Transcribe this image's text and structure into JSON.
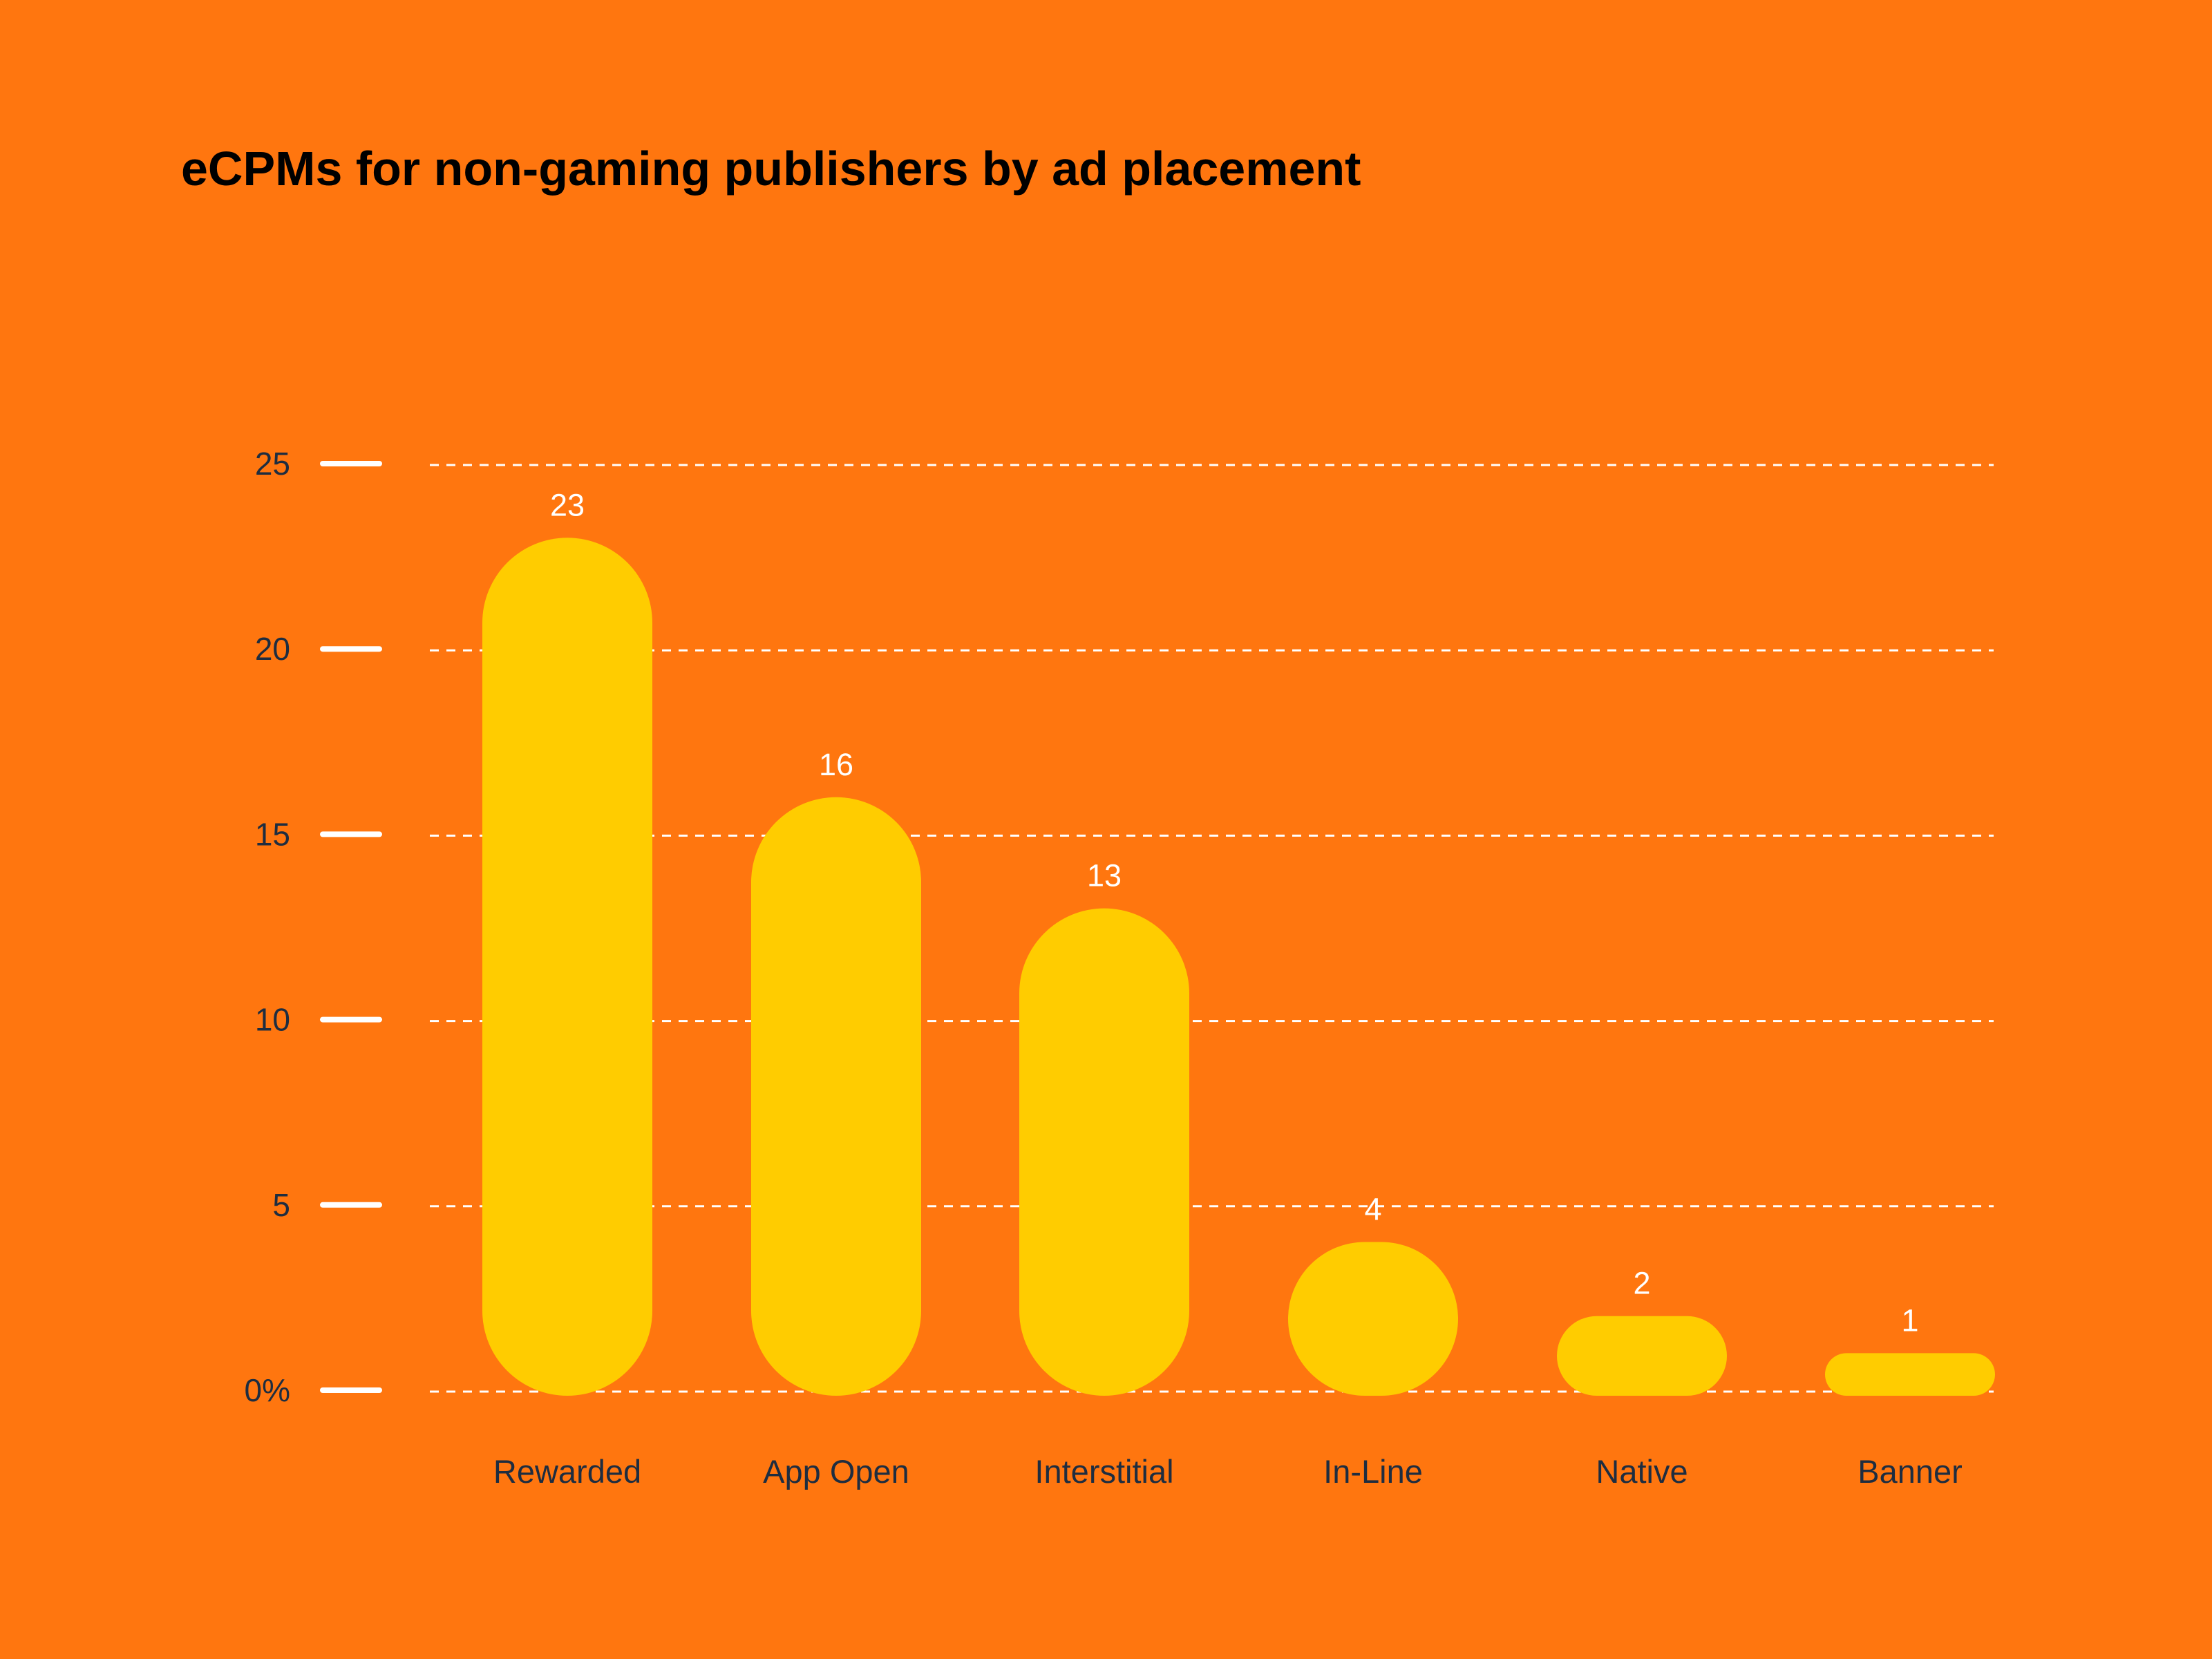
{
  "chart_data": {
    "type": "bar",
    "title": "eCPMs for non-gaming publishers by ad placement",
    "xlabel": "",
    "ylabel": "",
    "categories": [
      "Rewarded",
      "App Open",
      "Interstitial",
      "In-Line",
      "Native",
      "Banner"
    ],
    "values": [
      23,
      16,
      13,
      4,
      2,
      1
    ],
    "data_labels": [
      "23",
      "16",
      "13",
      "4",
      "2",
      "1"
    ],
    "ylim": [
      0,
      25
    ],
    "yticks": [
      0,
      5,
      10,
      15,
      20,
      25
    ],
    "ytick_labels": [
      "0%",
      "5",
      "10",
      "15",
      "20",
      "25"
    ],
    "grid": true,
    "legend": "none",
    "colors": {
      "background": "#FF760F",
      "bar": "#FFCC00",
      "grid": "#FFFFFF",
      "axis_text": "#1E2D40",
      "value_text": "#FFFFFF"
    }
  }
}
